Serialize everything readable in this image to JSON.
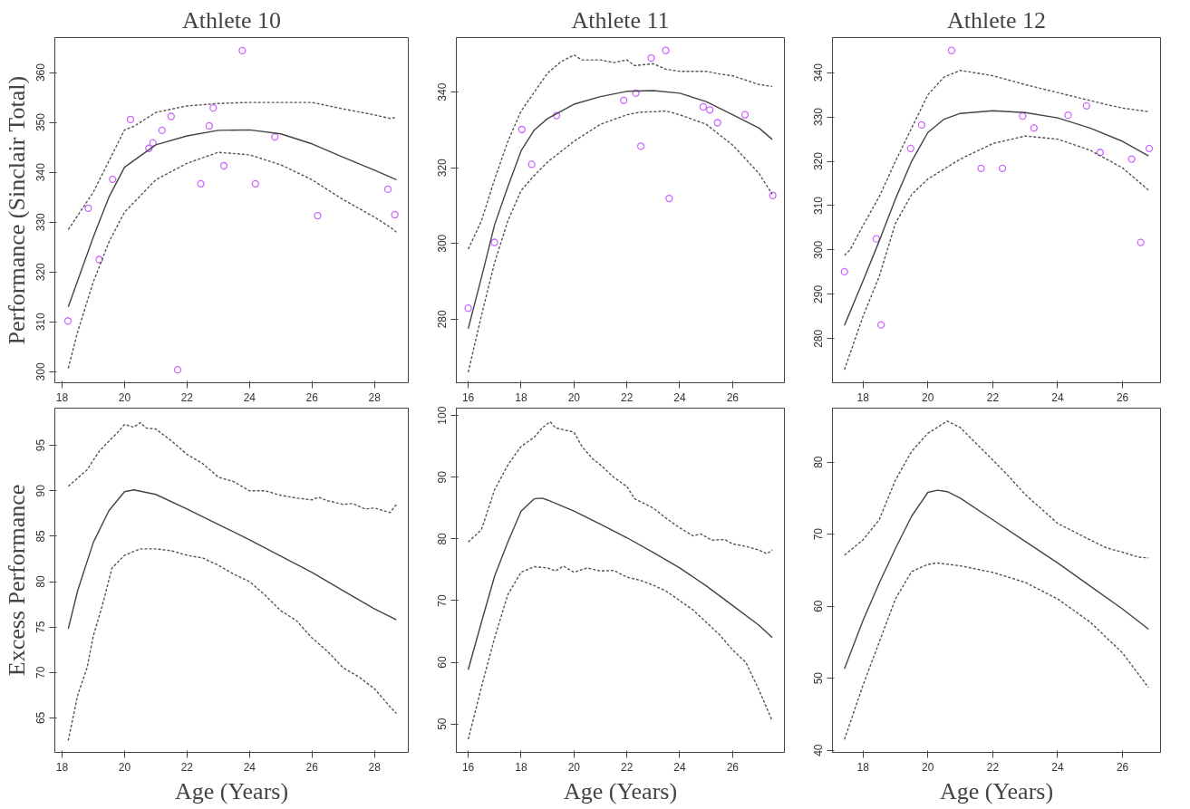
{
  "chart_data": [
    {
      "type": "scatter",
      "title": "Athlete 10",
      "ylabel": "Performance (Sinclair Total)",
      "xlim": [
        17.77,
        29.08
      ],
      "ylim": [
        297.8,
        367.0
      ],
      "xticks": [
        18,
        20,
        22,
        24,
        26,
        28
      ],
      "yticks": [
        300,
        310,
        320,
        330,
        340,
        350,
        360
      ],
      "series": [
        {
          "marker": "circle",
          "color": "#cc66ff",
          "x": [
            18.19,
            18.84,
            19.19,
            19.62,
            20.19,
            20.78,
            20.91,
            21.2,
            21.49,
            21.7,
            22.44,
            22.71,
            22.84,
            23.18,
            23.77,
            24.19,
            24.81,
            26.18,
            28.43,
            28.65
          ],
          "values": [
            310.2,
            332.8,
            322.5,
            338.6,
            350.6,
            344.8,
            345.9,
            348.4,
            351.2,
            300.4,
            337.7,
            349.3,
            352.9,
            341.3,
            364.4,
            337.7,
            347.1,
            331.3,
            336.6,
            331.5
          ]
        },
        {
          "type": "line",
          "line_style": "solid",
          "color": "#444444",
          "x": [
            18.2,
            19,
            19.5,
            20,
            21,
            22,
            23,
            24,
            25,
            26,
            27,
            28,
            28.7
          ],
          "values": [
            313,
            327,
            335,
            341,
            345.5,
            347.3,
            348.4,
            348.5,
            347.7,
            345.7,
            343,
            340.4,
            338.5
          ]
        },
        {
          "type": "line",
          "line_style": "dashed",
          "color": "#555555",
          "x": [
            18.2,
            19,
            20,
            20.3,
            21,
            22,
            23,
            24,
            25,
            26,
            27,
            28,
            28.5,
            28.7
          ],
          "values": [
            328.5,
            336,
            348.5,
            349.2,
            352,
            353.3,
            353.8,
            354,
            354,
            354,
            352.7,
            351.5,
            350.8,
            351
          ]
        },
        {
          "type": "line",
          "line_style": "dashed",
          "color": "#555555",
          "x": [
            18.2,
            18.5,
            19,
            19.5,
            20,
            21,
            22,
            23,
            24,
            25,
            26,
            27,
            28,
            28.5,
            28.7
          ],
          "values": [
            300.7,
            308,
            318,
            326,
            332,
            338.5,
            341.8,
            344,
            343.5,
            341.5,
            338.5,
            334.5,
            331,
            329,
            328
          ]
        }
      ]
    },
    {
      "type": "scatter",
      "title": "Athlete 11",
      "xlim": [
        15.55,
        27.96
      ],
      "ylim": [
        263.2,
        354.4
      ],
      "xticks": [
        16,
        18,
        20,
        22,
        24,
        26
      ],
      "yticks": [
        280,
        300,
        320,
        340
      ],
      "series": [
        {
          "marker": "circle",
          "color": "#cc66ff",
          "x": [
            16.0,
            16.99,
            18.03,
            18.4,
            19.34,
            21.88,
            22.34,
            22.53,
            22.92,
            23.47,
            23.6,
            24.89,
            25.14,
            25.43,
            26.47,
            27.52
          ],
          "values": [
            282.9,
            300.3,
            330.1,
            320.9,
            333.8,
            337.8,
            339.7,
            325.7,
            349.0,
            351.0,
            311.9,
            336.1,
            335.3,
            331.9,
            334.0,
            312.7
          ]
        },
        {
          "type": "line",
          "line_style": "solid",
          "color": "#444444",
          "x": [
            16,
            16.5,
            17,
            17.5,
            18,
            18.5,
            19,
            20,
            21,
            22,
            23,
            24,
            25,
            26,
            27,
            27.5
          ],
          "values": [
            277.5,
            291,
            305,
            315,
            324.5,
            330,
            333,
            336.8,
            338.8,
            340.2,
            340.4,
            339.7,
            337.5,
            334,
            330.5,
            327.5
          ]
        },
        {
          "type": "line",
          "line_style": "dashed",
          "color": "#555555",
          "x": [
            16,
            16.5,
            17,
            17.5,
            18,
            19,
            19.5,
            20,
            20.3,
            21,
            21.5,
            22,
            22.3,
            23,
            23.5,
            24,
            25,
            25.5,
            26,
            27,
            27.5
          ],
          "values": [
            298.5,
            306,
            317,
            327,
            335,
            345,
            348,
            349.8,
            348.5,
            348.5,
            347.8,
            348.5,
            347,
            347.5,
            346,
            345.5,
            345.5,
            344.8,
            344.3,
            342,
            341.5
          ]
        },
        {
          "type": "line",
          "line_style": "dashed",
          "color": "#555555",
          "x": [
            16,
            16.5,
            17,
            17.5,
            18,
            18.5,
            19,
            20,
            21,
            22,
            22.5,
            23,
            23.5,
            24,
            25,
            26,
            27,
            27.5
          ],
          "values": [
            266,
            281,
            295,
            306,
            314,
            318,
            321.5,
            327,
            331.5,
            334,
            334.7,
            334.8,
            335,
            334,
            331.5,
            326,
            318.5,
            313
          ]
        }
      ]
    },
    {
      "type": "scatter",
      "title": "Athlete 12",
      "xlim": [
        17.06,
        27.17
      ],
      "ylim": [
        270.05,
        347.9
      ],
      "xticks": [
        18,
        20,
        22,
        24,
        26
      ],
      "yticks": [
        280,
        290,
        300,
        310,
        320,
        330,
        340
      ],
      "series": [
        {
          "marker": "circle",
          "color": "#cc66ff",
          "x": [
            17.43,
            18.41,
            18.56,
            19.47,
            19.81,
            20.73,
            21.64,
            22.3,
            22.92,
            23.27,
            24.32,
            24.89,
            25.31,
            26.28,
            26.56,
            26.82
          ],
          "values": [
            295.1,
            302.5,
            283.1,
            322.9,
            328.2,
            345.0,
            318.4,
            318.4,
            330.2,
            327.5,
            330.4,
            332.5,
            322.0,
            320.5,
            301.7,
            322.9
          ]
        },
        {
          "type": "line",
          "line_style": "solid",
          "color": "#444444",
          "x": [
            17.43,
            18,
            18.5,
            19,
            19.5,
            20,
            20.5,
            21,
            22,
            23,
            24,
            25,
            26,
            26.8
          ],
          "values": [
            283,
            293,
            302,
            311.5,
            320,
            326.5,
            329.5,
            330.8,
            331.4,
            331,
            329.8,
            327.5,
            324.5,
            321.2
          ]
        },
        {
          "type": "line",
          "line_style": "dashed",
          "color": "#555555",
          "x": [
            17.43,
            17.6,
            18,
            18.5,
            19,
            19.5,
            20,
            20.5,
            21,
            22,
            23,
            24,
            25,
            25.5,
            26,
            26.8
          ],
          "values": [
            298.8,
            300,
            305.5,
            312,
            320,
            327.5,
            335,
            339,
            340.5,
            339.3,
            337.3,
            335.5,
            333.7,
            332.8,
            332,
            331.2
          ]
        },
        {
          "type": "line",
          "line_style": "dashed",
          "color": "#555555",
          "x": [
            17.43,
            18,
            18.5,
            19,
            19.5,
            20,
            21,
            22,
            23,
            24,
            25,
            26,
            26.8
          ],
          "values": [
            273,
            285,
            294,
            306,
            312.5,
            316,
            320.5,
            324,
            325.7,
            325,
            322.5,
            318.5,
            313.5
          ]
        }
      ]
    },
    {
      "type": "line",
      "ylabel": "Excess Performance",
      "xlabel": "Age (Years)",
      "xlim": [
        17.77,
        29.08
      ],
      "ylim": [
        61.2,
        99.1
      ],
      "xticks": [
        18,
        20,
        22,
        24,
        26,
        28
      ],
      "yticks": [
        65,
        70,
        75,
        80,
        85,
        90,
        95
      ],
      "series": [
        {
          "line_style": "solid",
          "color": "#444444",
          "x": [
            18.2,
            18.5,
            19,
            19.5,
            20,
            20.3,
            21,
            22,
            23,
            24,
            25,
            26,
            27,
            28,
            28.7
          ],
          "values": [
            74.8,
            79,
            84.3,
            87.8,
            89.9,
            90.1,
            89.6,
            88,
            86.3,
            84.6,
            82.8,
            81,
            79,
            77,
            75.8
          ]
        },
        {
          "line_style": "dashed",
          "color": "#555555",
          "x": [
            18.2,
            18.8,
            19.2,
            19.8,
            20,
            20.3,
            20.5,
            20.7,
            21,
            21.5,
            22,
            22.5,
            23,
            23.5,
            24,
            24.5,
            25,
            25.5,
            26,
            26.2,
            26.5,
            27,
            27.3,
            27.7,
            28,
            28.5,
            28.7
          ],
          "values": [
            90.5,
            92.3,
            94.4,
            96.5,
            97.3,
            97.0,
            97.5,
            96.9,
            96.8,
            95.5,
            94,
            93,
            91.5,
            91,
            90,
            90,
            89.5,
            89.2,
            89,
            89.3,
            88.9,
            88.5,
            88.6,
            88,
            88.1,
            87.6,
            88.5
          ]
        },
        {
          "line_style": "dashed",
          "color": "#555555",
          "x": [
            18.2,
            18.5,
            18.8,
            19,
            19.3,
            19.6,
            20,
            20.5,
            21,
            21.5,
            22,
            22.5,
            23,
            23.5,
            24,
            24.5,
            25,
            25.5,
            26,
            26.5,
            27,
            27.5,
            28,
            28.5,
            28.7
          ],
          "values": [
            62.5,
            67.5,
            70.5,
            74,
            77.5,
            81.5,
            82.9,
            83.6,
            83.6,
            83.4,
            82.9,
            82.6,
            81.8,
            80.8,
            80,
            78.5,
            76.8,
            75.7,
            73.8,
            72.3,
            70.5,
            69.5,
            68.2,
            66.2,
            65.5
          ]
        }
      ]
    },
    {
      "type": "line",
      "xlabel": "Age (Years)",
      "xlim": [
        15.55,
        27.96
      ],
      "ylim": [
        45.4,
        101.2
      ],
      "xticks": [
        16,
        18,
        20,
        22,
        24,
        26
      ],
      "yticks": [
        50,
        60,
        70,
        80,
        90,
        100
      ],
      "series": [
        {
          "line_style": "solid",
          "color": "#444444",
          "x": [
            16,
            16.5,
            17,
            17.5,
            18,
            18.5,
            18.8,
            19,
            20,
            21,
            22,
            23,
            24,
            25,
            26,
            27,
            27.5
          ],
          "values": [
            58.8,
            66.5,
            74,
            79.5,
            84.5,
            86.5,
            86.6,
            86.3,
            84.5,
            82.4,
            80.2,
            77.8,
            75.3,
            72.4,
            69.2,
            66,
            64
          ]
        },
        {
          "line_style": "dashed",
          "color": "#555555",
          "x": [
            16,
            16.5,
            17,
            17.5,
            18,
            18.5,
            18.8,
            19.1,
            19.3,
            20,
            20.3,
            20.7,
            21,
            21.5,
            22,
            22.3,
            23,
            23.5,
            24,
            24.5,
            24.8,
            25.2,
            25.7,
            26,
            26.5,
            27,
            27.3,
            27.5
          ],
          "values": [
            79.5,
            81.5,
            88,
            92,
            95,
            96.5,
            98,
            99,
            98,
            97.3,
            95,
            93,
            92,
            90,
            88.5,
            86.5,
            85,
            83.3,
            81.8,
            80.5,
            80.8,
            79.8,
            79.9,
            79.2,
            78.8,
            78.2,
            77.6,
            78.2
          ]
        },
        {
          "line_style": "dashed",
          "color": "#555555",
          "x": [
            16,
            16.5,
            17,
            17.5,
            18,
            18.5,
            19,
            19.3,
            19.6,
            20,
            20.5,
            21,
            21.5,
            22,
            22.5,
            23,
            23.5,
            24,
            24.5,
            25,
            25.5,
            26,
            26.5,
            27,
            27.5
          ],
          "values": [
            47.5,
            56,
            64,
            71,
            74.6,
            75.5,
            75.3,
            74.8,
            75.6,
            74.6,
            75.3,
            74.8,
            74.9,
            73.8,
            73.3,
            72.5,
            71.5,
            70,
            68.5,
            66.5,
            64.5,
            62,
            60,
            55.5,
            50.5
          ]
        }
      ]
    },
    {
      "type": "line",
      "xlabel": "Age (Years)",
      "xlim": [
        17.06,
        27.17
      ],
      "ylim": [
        39.7,
        87.5
      ],
      "xticks": [
        18,
        20,
        22,
        24,
        26
      ],
      "yticks": [
        40,
        50,
        60,
        70,
        80
      ],
      "series": [
        {
          "line_style": "solid",
          "color": "#444444",
          "x": [
            17.43,
            18,
            18.5,
            19,
            19.5,
            20,
            20.3,
            20.6,
            21,
            22,
            23,
            24,
            25,
            26,
            26.8
          ],
          "values": [
            51.3,
            58,
            63.2,
            68,
            72.5,
            75.8,
            76.1,
            75.9,
            75,
            72,
            69,
            66,
            62.8,
            59.6,
            56.8
          ]
        },
        {
          "line_style": "dashed",
          "color": "#555555",
          "x": [
            17.43,
            18,
            18.5,
            19,
            19.5,
            20,
            20.6,
            21,
            22,
            22.5,
            23,
            24,
            25,
            25.5,
            26,
            26.5,
            26.8
          ],
          "values": [
            67.1,
            69.2,
            72,
            77.5,
            81.5,
            84,
            85.7,
            84.8,
            80.3,
            78,
            75.5,
            71.5,
            69.2,
            68.1,
            67.5,
            66.8,
            66.7
          ]
        },
        {
          "line_style": "dashed",
          "color": "#555555",
          "x": [
            17.43,
            18,
            18.5,
            19,
            19.5,
            20,
            20.3,
            21,
            22,
            23,
            24,
            25,
            26,
            26.8
          ],
          "values": [
            41.5,
            49,
            55,
            61,
            64.8,
            65.8,
            66,
            65.6,
            64.7,
            63.3,
            61,
            57.8,
            53.5,
            48.7
          ]
        }
      ]
    }
  ]
}
